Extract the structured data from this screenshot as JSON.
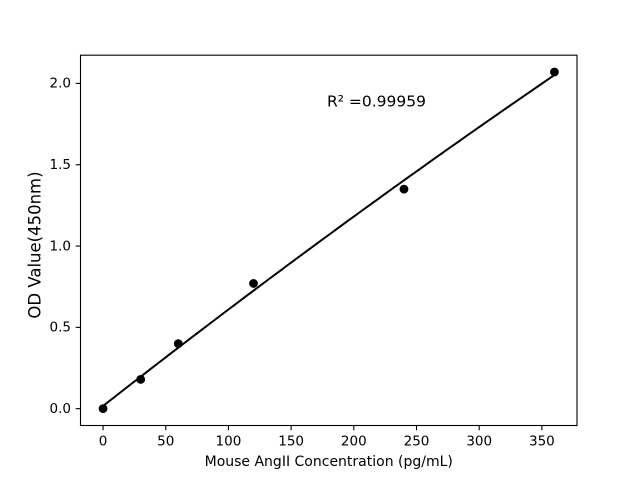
{
  "chart_data": {
    "type": "scatter",
    "title": "",
    "xlabel": "Mouse AngII Concentration (pg/mL)",
    "ylabel": "OD Value(450nm)",
    "annotation": "R² =0.99959",
    "r_squared": 0.99959,
    "points": [
      {
        "x": 0,
        "y": 0.0
      },
      {
        "x": 30,
        "y": 0.18
      },
      {
        "x": 60,
        "y": 0.4
      },
      {
        "x": 120,
        "y": 0.77
      },
      {
        "x": 240,
        "y": 1.35
      },
      {
        "x": 360,
        "y": 2.07
      }
    ],
    "fit": {
      "type": "quadratic",
      "coefficients": {
        "c2": -1.0681e-06,
        "c1": 0.0060365,
        "c0": 0.016753
      },
      "x_range": [
        0,
        360
      ]
    },
    "x_ticks": [
      "0",
      "50",
      "100",
      "150",
      "200",
      "250",
      "300",
      "350"
    ],
    "y_ticks": [
      "0.0",
      "0.5",
      "1.0",
      "1.5",
      "2.0"
    ],
    "xlim": [
      -18,
      378
    ],
    "ylim": [
      -0.1035,
      2.1735
    ],
    "grid": false,
    "legend": null,
    "marker_radius": 4.4,
    "colors": {
      "marker": "#000000",
      "line": "#000000",
      "axis": "#000000",
      "text": "#000000",
      "background": "#ffffff"
    }
  }
}
